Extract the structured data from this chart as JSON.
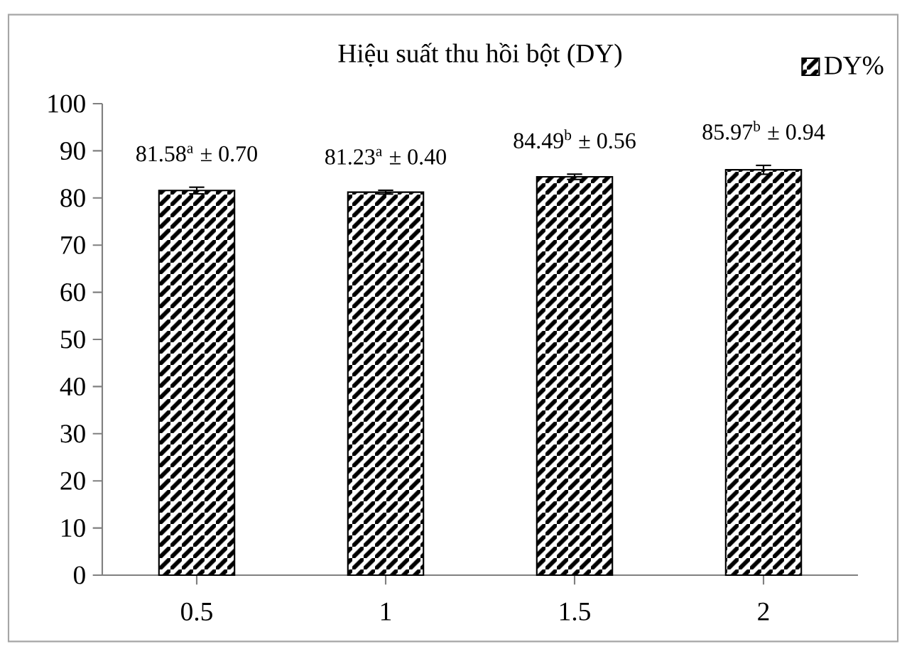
{
  "chart_data": {
    "type": "bar",
    "title": "Hiệu suất thu hồi bột (DY)",
    "categories": [
      "0.5",
      "1",
      "1.5",
      "2"
    ],
    "series": [
      {
        "name": "DY%",
        "color": "#000000",
        "values": [
          81.58,
          81.23,
          84.49,
          85.97
        ],
        "errors": [
          0.7,
          0.4,
          0.56,
          0.94
        ],
        "value_labels": [
          "81.58$^{a}$ ± 0.70",
          "81.23$^{a}$ ± 0.40",
          "84.49$^{b}$ ± 0.56",
          "85.97$^{b}$ ± 0.94"
        ]
      }
    ],
    "ylim": [
      0,
      100
    ],
    "yticks": [
      0,
      10,
      20,
      30,
      40,
      50,
      60,
      70,
      80,
      90,
      100
    ],
    "legend": "top right"
  }
}
